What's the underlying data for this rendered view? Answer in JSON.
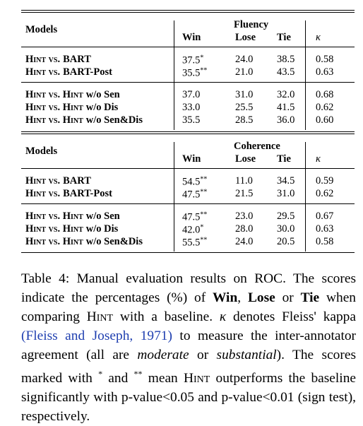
{
  "table": {
    "sections": [
      {
        "models": "Models",
        "group": "Fluency",
        "columns": [
          "Win",
          "Lose",
          "Tie",
          "κ"
        ],
        "groups": [
          [
            {
              "label": {
                "sc": "Hint vs.",
                "rest": "BART"
              },
              "win": "37.5",
              "sig": "*",
              "lose": "24.0",
              "tie": "38.5",
              "kappa": "0.58"
            },
            {
              "label": {
                "sc": "Hint vs.",
                "rest": "BART-Post"
              },
              "win": "35.5",
              "sig": "**",
              "lose": "21.0",
              "tie": "43.5",
              "kappa": "0.63"
            }
          ],
          [
            {
              "label": {
                "sc": "Hint vs. Hint",
                "rest": "w/o Sen"
              },
              "win": "37.0",
              "lose": "31.0",
              "tie": "32.0",
              "kappa": "0.68"
            },
            {
              "label": {
                "sc": "Hint vs. Hint",
                "rest": "w/o Dis"
              },
              "win": "33.0",
              "lose": "25.5",
              "tie": "41.5",
              "kappa": "0.62"
            },
            {
              "label": {
                "sc": "Hint vs. Hint",
                "rest": "w/o Sen&Dis"
              },
              "win": "35.5",
              "lose": "28.5",
              "tie": "36.0",
              "kappa": "0.60"
            }
          ]
        ]
      },
      {
        "models": "Models",
        "group": "Coherence",
        "columns": [
          "Win",
          "Lose",
          "Tie",
          "κ"
        ],
        "groups": [
          [
            {
              "label": {
                "sc": "Hint vs.",
                "rest": "BART"
              },
              "win": "54.5",
              "sig": "**",
              "lose": "11.0",
              "tie": "34.5",
              "kappa": "0.59"
            },
            {
              "label": {
                "sc": "Hint vs.",
                "rest": "BART-Post"
              },
              "win": "47.5",
              "sig": "**",
              "lose": "21.5",
              "tie": "31.0",
              "kappa": "0.62"
            }
          ],
          [
            {
              "label": {
                "sc": "Hint vs. Hint",
                "rest": "w/o Sen"
              },
              "win": "47.5",
              "sig": "**",
              "lose": "23.0",
              "tie": "29.5",
              "kappa": "0.67"
            },
            {
              "label": {
                "sc": "Hint vs. Hint",
                "rest": "w/o Dis"
              },
              "win": "42.0",
              "sig": "*",
              "lose": "28.0",
              "tie": "30.0",
              "kappa": "0.63"
            },
            {
              "label": {
                "sc": "Hint vs. Hint",
                "rest": "w/o Sen&Dis"
              },
              "win": "55.5",
              "sig": "**",
              "lose": "24.0",
              "tie": "20.5",
              "kappa": "0.58"
            }
          ]
        ]
      }
    ]
  },
  "caption": [
    {
      "text": "Table 4: Manual evaluation results on ROC. The scores indicate the percentages (%) of "
    },
    {
      "text": "Win",
      "style": "bold"
    },
    {
      "text": ", "
    },
    {
      "text": "Lose",
      "style": "bold"
    },
    {
      "text": " or "
    },
    {
      "text": "Tie",
      "style": "bold"
    },
    {
      "text": " when comparing "
    },
    {
      "text": "Hint",
      "style": "smallcaps"
    },
    {
      "text": " with a baseline. "
    },
    {
      "text": "κ",
      "style": "italic"
    },
    {
      "text": " denotes Fleiss' kappa "
    },
    {
      "text": "(Fleiss and Joseph, 1971)",
      "style": "link"
    },
    {
      "text": " to measure the inter-annotator agreement (all are "
    },
    {
      "text": "moderate",
      "style": "italic"
    },
    {
      "text": " or "
    },
    {
      "text": "substantial",
      "style": "italic"
    },
    {
      "text": "). The scores marked with "
    },
    {
      "text": "*",
      "style": "sup"
    },
    {
      "text": " and "
    },
    {
      "text": "**",
      "style": "sup"
    },
    {
      "text": " mean "
    },
    {
      "text": "Hint",
      "style": "smallcaps"
    },
    {
      "text": " outperforms the baseline significantly with p-value<0.05 and p-value<0.01 (sign test), respectively."
    }
  ]
}
